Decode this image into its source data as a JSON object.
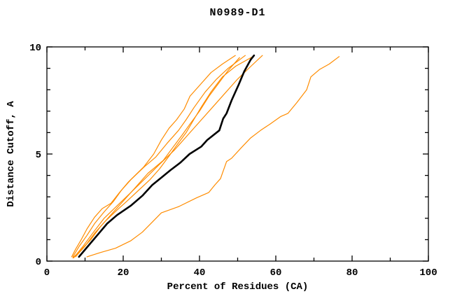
{
  "chart_data": {
    "type": "line",
    "title": "N0989-D1",
    "xlabel": "Percent of Residues (CA)",
    "ylabel": "Distance Cutoff, A",
    "xlim": [
      0,
      100
    ],
    "ylim": [
      0,
      10
    ],
    "x_major_ticks": [
      0,
      20,
      40,
      60,
      80,
      100
    ],
    "x_minor_ticks": [
      10,
      30,
      50,
      70,
      90
    ],
    "y_major_ticks": [
      0,
      5,
      10
    ],
    "y_minor_ticks": [
      1,
      2,
      3,
      4,
      6,
      7,
      8,
      9
    ],
    "grid": false,
    "legend": "none",
    "colors": {
      "model": "#ff8c00",
      "reference": "#000000",
      "frame": "#000000"
    },
    "series": [
      {
        "name": "model-1",
        "color": "#ff8c00",
        "width": 1.2,
        "points": [
          [
            6.5,
            0.2
          ],
          [
            7.5,
            0.55
          ],
          [
            9,
            1.0
          ],
          [
            10.5,
            1.5
          ],
          [
            12.5,
            2.05
          ],
          [
            14.5,
            2.45
          ],
          [
            16.8,
            2.7
          ],
          [
            19,
            3.2
          ],
          [
            21.4,
            3.7
          ],
          [
            25.4,
            4.4
          ],
          [
            28,
            5.0
          ],
          [
            30,
            5.65
          ],
          [
            32,
            6.2
          ],
          [
            34,
            6.6
          ],
          [
            36,
            7.1
          ],
          [
            37.5,
            7.7
          ],
          [
            40,
            8.2
          ],
          [
            43,
            8.8
          ],
          [
            46,
            9.2
          ],
          [
            49.4,
            9.6
          ]
        ]
      },
      {
        "name": "model-2",
        "color": "#ff8c00",
        "width": 1.2,
        "points": [
          [
            6.8,
            0.2
          ],
          [
            8.5,
            0.7
          ],
          [
            10.5,
            1.2
          ],
          [
            12.5,
            1.75
          ],
          [
            15,
            2.3
          ],
          [
            17.5,
            2.8
          ],
          [
            19.5,
            3.3
          ],
          [
            22,
            3.8
          ],
          [
            25.5,
            4.4
          ],
          [
            28.5,
            4.85
          ],
          [
            31.5,
            5.5
          ],
          [
            34.5,
            6.1
          ],
          [
            36.5,
            6.6
          ],
          [
            38.5,
            7.15
          ],
          [
            41.5,
            7.9
          ],
          [
            44.5,
            8.5
          ],
          [
            47.5,
            9.0
          ],
          [
            52,
            9.6
          ]
        ]
      },
      {
        "name": "model-3",
        "color": "#ff8c00",
        "width": 1.2,
        "points": [
          [
            7,
            0.15
          ],
          [
            9.5,
            0.7
          ],
          [
            12,
            1.3
          ],
          [
            15,
            2.0
          ],
          [
            18.5,
            2.6
          ],
          [
            22,
            3.2
          ],
          [
            26,
            3.9
          ],
          [
            30,
            4.6
          ],
          [
            33.5,
            5.2
          ],
          [
            37,
            5.9
          ],
          [
            40,
            6.5
          ],
          [
            43.5,
            7.2
          ],
          [
            47,
            7.9
          ],
          [
            50,
            8.5
          ],
          [
            53.5,
            9.1
          ],
          [
            56.5,
            9.6
          ]
        ]
      },
      {
        "name": "model-4",
        "color": "#ff8c00",
        "width": 1.2,
        "points": [
          [
            7.5,
            0.2
          ],
          [
            10,
            0.7
          ],
          [
            12.5,
            1.3
          ],
          [
            15.5,
            1.9
          ],
          [
            18.5,
            2.4
          ],
          [
            21,
            2.8
          ],
          [
            24,
            3.3
          ],
          [
            27,
            3.8
          ],
          [
            29.5,
            4.3
          ],
          [
            32,
            4.9
          ],
          [
            34,
            5.4
          ],
          [
            36.5,
            6.0
          ],
          [
            38.5,
            6.6
          ],
          [
            40.5,
            7.2
          ],
          [
            43,
            7.9
          ],
          [
            46,
            8.6
          ],
          [
            49.5,
            9.1
          ],
          [
            54,
            9.55
          ]
        ]
      },
      {
        "name": "model-5",
        "color": "#ff8c00",
        "width": 1.2,
        "points": [
          [
            6.8,
            0.15
          ],
          [
            8.8,
            0.5
          ],
          [
            11.5,
            1.0
          ],
          [
            14,
            1.6
          ],
          [
            16.5,
            2.1
          ],
          [
            19.5,
            2.7
          ],
          [
            23,
            3.4
          ],
          [
            26.5,
            4.1
          ],
          [
            30.5,
            4.7
          ],
          [
            33,
            5.3
          ],
          [
            35.5,
            5.9
          ],
          [
            37.5,
            6.4
          ],
          [
            40,
            7.0
          ],
          [
            42.5,
            7.7
          ],
          [
            45,
            8.3
          ],
          [
            47.5,
            8.9
          ],
          [
            50.5,
            9.5
          ]
        ]
      },
      {
        "name": "model-6-outlier",
        "color": "#ff8c00",
        "width": 1.2,
        "points": [
          [
            10.5,
            0.2
          ],
          [
            14,
            0.4
          ],
          [
            18,
            0.6
          ],
          [
            22,
            0.95
          ],
          [
            25,
            1.35
          ],
          [
            27.5,
            1.8
          ],
          [
            30,
            2.25
          ],
          [
            34.6,
            2.55
          ],
          [
            39.2,
            2.95
          ],
          [
            42.4,
            3.2
          ],
          [
            44,
            3.55
          ],
          [
            45.5,
            3.85
          ],
          [
            47.1,
            4.65
          ],
          [
            48.4,
            4.8
          ],
          [
            51,
            5.3
          ],
          [
            53.4,
            5.75
          ],
          [
            56,
            6.1
          ],
          [
            58.5,
            6.4
          ],
          [
            61.3,
            6.75
          ],
          [
            63.2,
            6.9
          ],
          [
            65.5,
            7.4
          ],
          [
            68.1,
            8.0
          ],
          [
            69.2,
            8.6
          ],
          [
            71.5,
            8.95
          ],
          [
            74,
            9.2
          ],
          [
            76.6,
            9.55
          ]
        ]
      },
      {
        "name": "reference",
        "color": "#000000",
        "width": 2.6,
        "points": [
          [
            8.4,
            0.2
          ],
          [
            11,
            0.75
          ],
          [
            13.4,
            1.25
          ],
          [
            15.8,
            1.75
          ],
          [
            18.4,
            2.15
          ],
          [
            22.1,
            2.6
          ],
          [
            25,
            3.05
          ],
          [
            27.6,
            3.55
          ],
          [
            30,
            3.9
          ],
          [
            32.4,
            4.25
          ],
          [
            35,
            4.6
          ],
          [
            37.4,
            5.0
          ],
          [
            40.5,
            5.35
          ],
          [
            42,
            5.65
          ],
          [
            45.2,
            6.1
          ],
          [
            46.2,
            6.65
          ],
          [
            47.1,
            6.9
          ],
          [
            48.4,
            7.5
          ],
          [
            50.3,
            8.25
          ],
          [
            51.7,
            8.85
          ],
          [
            53.4,
            9.4
          ],
          [
            54.3,
            9.6
          ]
        ]
      }
    ]
  }
}
